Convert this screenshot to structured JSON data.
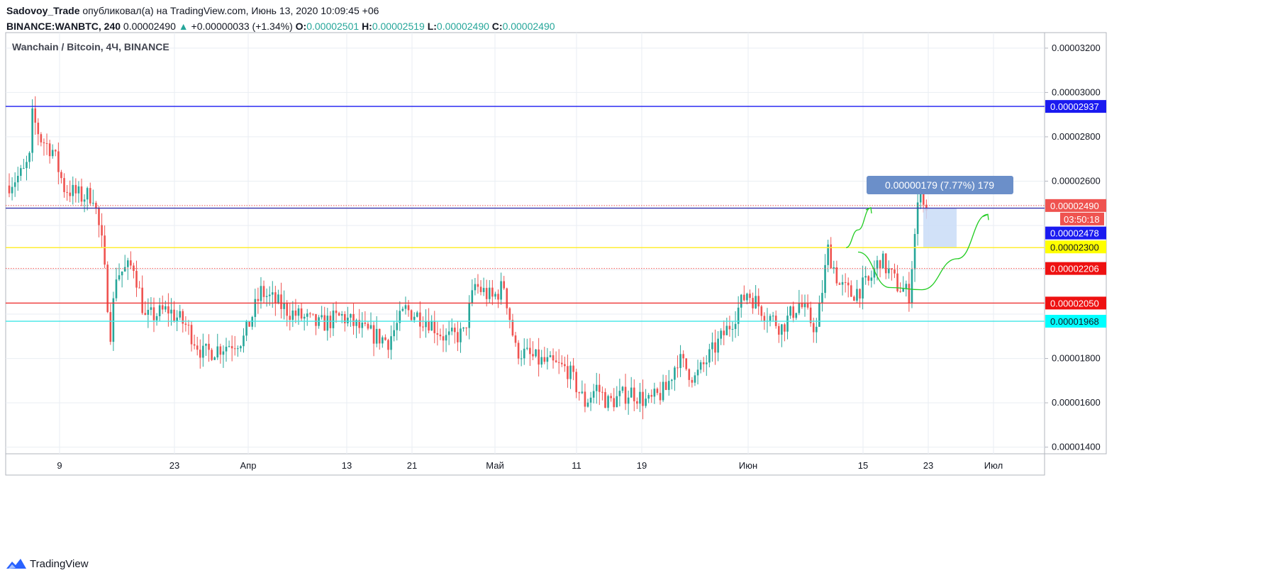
{
  "header": {
    "author": "Sadovoy_Trade",
    "published_text": "опубликовал(а) на TradingView.com, Июнь 13, 2020 10:09:45 +06",
    "symbol": "BINANCE:WANBTC, 240",
    "last": "0.00002490",
    "change_arrow": "▲",
    "change": "+0.00000033 (+1.34%)",
    "o_label": "O:",
    "o": "0.00002501",
    "h_label": "H:",
    "h": "0.00002519",
    "l_label": "L:",
    "l": "0.00002490",
    "c_label": "C:",
    "c": "0.00002490"
  },
  "footer": {
    "brand": "TradingView",
    "logo_icon": "tradingview-logo-icon"
  },
  "colors": {
    "up": "#26a69a",
    "down": "#ef5350",
    "grid": "#e9eef3",
    "blue_line": "#1a1af0",
    "yellow_line": "#ffee33",
    "red_line": "#ee3333",
    "cyan_line": "#40e6e6",
    "arrow": "#22cc22",
    "projection": "#6b8fc9"
  },
  "chart_data": {
    "type": "candlestick",
    "title": "Wanchain / Bitcoin, 4Ч, BINANCE",
    "x_tick_labels": [
      "9",
      "23",
      "Апр",
      "13",
      "21",
      "Май",
      "11",
      "19",
      "Июн",
      "15",
      "23",
      "Июл"
    ],
    "y_tick_labels": [
      "0.00003200",
      "0.00003000",
      "0.00002800",
      "0.00002600",
      "0.00001800",
      "0.00001600",
      "0.00001400"
    ],
    "ylim": [
      1.37e-05,
      3.27e-05
    ],
    "grid": true,
    "price_path": [
      {
        "t": 0,
        "p": 2.58e-05
      },
      {
        "t": 6,
        "p": 2.64e-05
      },
      {
        "t": 8,
        "p": 2.7e-05
      },
      {
        "t": 9,
        "p": 2.89e-05
      },
      {
        "t": 12,
        "p": 2.79e-05
      },
      {
        "t": 16,
        "p": 2.74e-05
      },
      {
        "t": 20,
        "p": 2.57e-05
      },
      {
        "t": 26,
        "p": 2.53e-05
      },
      {
        "t": 30,
        "p": 2.54e-05
      },
      {
        "t": 33,
        "p": 2.32e-05
      },
      {
        "t": 36,
        "p": 1.92e-05
      },
      {
        "t": 38,
        "p": 2.18e-05
      },
      {
        "t": 44,
        "p": 2.22e-05
      },
      {
        "t": 48,
        "p": 1.98e-05
      },
      {
        "t": 56,
        "p": 2.02e-05
      },
      {
        "t": 62,
        "p": 1.95e-05
      },
      {
        "t": 68,
        "p": 1.82e-05
      },
      {
        "t": 74,
        "p": 1.85e-05
      },
      {
        "t": 82,
        "p": 1.89e-05
      },
      {
        "t": 88,
        "p": 2.1e-05
      },
      {
        "t": 98,
        "p": 2.01e-05
      },
      {
        "t": 108,
        "p": 1.95e-05
      },
      {
        "t": 116,
        "p": 1.99e-05
      },
      {
        "t": 124,
        "p": 1.92e-05
      },
      {
        "t": 132,
        "p": 1.88e-05
      },
      {
        "t": 138,
        "p": 2.02e-05
      },
      {
        "t": 146,
        "p": 1.97e-05
      },
      {
        "t": 152,
        "p": 1.89e-05
      },
      {
        "t": 158,
        "p": 1.91e-05
      },
      {
        "t": 162,
        "p": 2.13e-05
      },
      {
        "t": 168,
        "p": 2.07e-05
      },
      {
        "t": 172,
        "p": 2.13e-05
      },
      {
        "t": 176,
        "p": 1.84e-05
      },
      {
        "t": 184,
        "p": 1.79e-05
      },
      {
        "t": 194,
        "p": 1.75e-05
      },
      {
        "t": 200,
        "p": 1.6e-05
      },
      {
        "t": 204,
        "p": 1.67e-05
      },
      {
        "t": 208,
        "p": 1.6e-05
      },
      {
        "t": 216,
        "p": 1.65e-05
      },
      {
        "t": 222,
        "p": 1.6e-05
      },
      {
        "t": 228,
        "p": 1.66e-05
      },
      {
        "t": 232,
        "p": 1.8e-05
      },
      {
        "t": 238,
        "p": 1.71e-05
      },
      {
        "t": 244,
        "p": 1.83e-05
      },
      {
        "t": 250,
        "p": 1.95e-05
      },
      {
        "t": 256,
        "p": 2.1e-05
      },
      {
        "t": 262,
        "p": 2.01e-05
      },
      {
        "t": 268,
        "p": 1.94e-05
      },
      {
        "t": 274,
        "p": 2.05e-05
      },
      {
        "t": 280,
        "p": 1.93e-05
      },
      {
        "t": 284,
        "p": 2.29e-05
      },
      {
        "t": 288,
        "p": 2.13e-05
      },
      {
        "t": 292,
        "p": 2.09e-05
      },
      {
        "t": 298,
        "p": 2.14e-05
      },
      {
        "t": 302,
        "p": 2.25e-05
      },
      {
        "t": 308,
        "p": 2.13e-05
      },
      {
        "t": 312,
        "p": 2.09e-05
      },
      {
        "t": 314,
        "p": 2.36e-05
      },
      {
        "t": 316,
        "p": 2.59e-05
      },
      {
        "t": 317,
        "p": 2.49e-05
      }
    ],
    "levels": [
      {
        "name": "level-2937",
        "price": 2.937e-05,
        "label": "0.00002937",
        "style": "solid",
        "color": "#1a1af0",
        "label_bg": "#1a1af0"
      },
      {
        "name": "level-2490",
        "price": 2.49e-05,
        "label": "0.00002490",
        "style": "dotted",
        "color": "#ef5350",
        "label_bg": "#ef5350"
      },
      {
        "name": "level-2478",
        "price": 2.478e-05,
        "label": "0.00002478",
        "style": "solid",
        "color": "#3333aa",
        "label_bg": "#1a1af0"
      },
      {
        "name": "level-2300",
        "price": 2.3e-05,
        "label": "0.00002300",
        "style": "solid",
        "color": "#ffee33",
        "label_bg": "#ffff00"
      },
      {
        "name": "level-2206",
        "price": 2.206e-05,
        "label": "0.00002206",
        "style": "dotted",
        "color": "#ef5350",
        "label_bg": "#ee1111"
      },
      {
        "name": "level-2050",
        "price": 2.05e-05,
        "label": "0.00002050",
        "style": "solid",
        "color": "#ee3333",
        "label_bg": "#ee1111"
      },
      {
        "name": "level-1968",
        "price": 1.968e-05,
        "label": "0.00001968",
        "style": "solid",
        "color": "#40e6e6",
        "label_bg": "#00ffff"
      }
    ],
    "countdown": "03:50:18",
    "measure_label": "0.00000179 (7.77%) 179",
    "measure_box": {
      "price_top": 2.48e-05,
      "price_bottom": 2.3e-05
    },
    "projection_arrows": [
      {
        "name": "arrow-up-short",
        "points": [
          [
            317,
            2.3e-05
          ],
          [
            321,
            2.38e-05
          ],
          [
            325,
            2.48e-05
          ]
        ]
      },
      {
        "name": "arrow-dip-then-rally",
        "points": [
          [
            322,
            2.28e-05
          ],
          [
            336,
            2.12e-05
          ],
          [
            348,
            2.11e-05
          ],
          [
            360,
            2.25e-05
          ],
          [
            366,
            2.45e-05
          ]
        ]
      }
    ]
  }
}
